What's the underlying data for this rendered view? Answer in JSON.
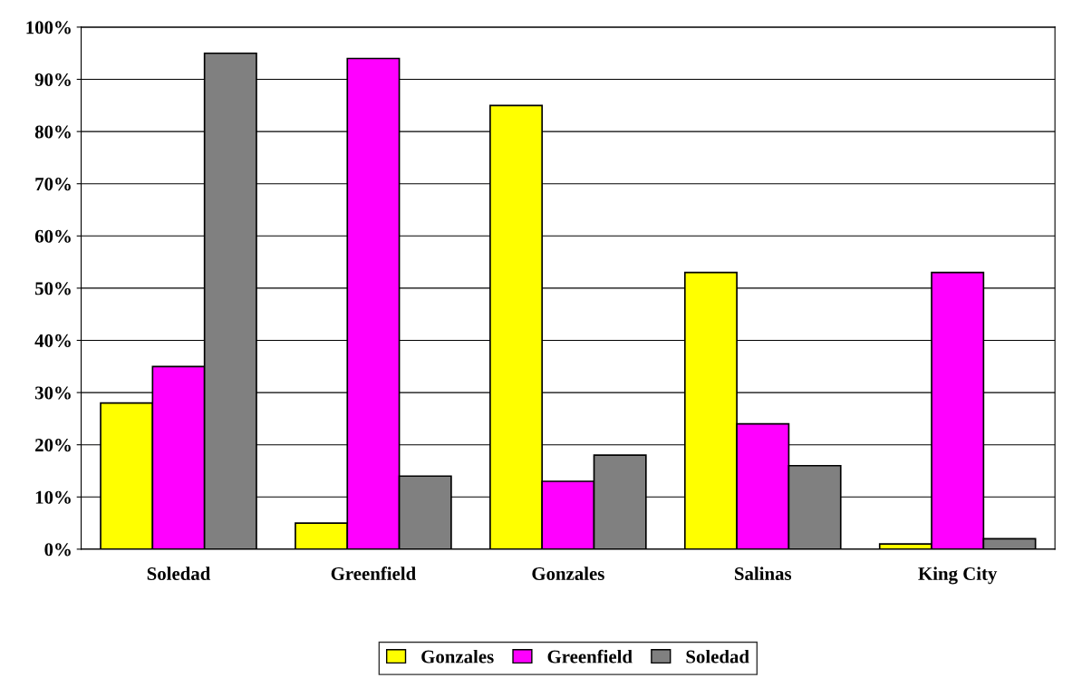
{
  "chart_data": {
    "type": "bar",
    "categories": [
      "Soledad",
      "Greenfield",
      "Gonzales",
      "Salinas",
      "King City"
    ],
    "series": [
      {
        "name": "Gonzales",
        "color": "#ffff00",
        "values": [
          28,
          5,
          85,
          53,
          1
        ]
      },
      {
        "name": "Greenfield",
        "color": "#ff00ff",
        "values": [
          35,
          94,
          13,
          24,
          53
        ]
      },
      {
        "name": "Soledad",
        "color": "#808080",
        "values": [
          95,
          14,
          18,
          16,
          2
        ]
      }
    ],
    "ylim": [
      0,
      100
    ],
    "yticks": [
      {
        "value": 0,
        "label": "0%"
      },
      {
        "value": 10,
        "label": "10%"
      },
      {
        "value": 20,
        "label": "20%"
      },
      {
        "value": 30,
        "label": "30%"
      },
      {
        "value": 40,
        "label": "40%"
      },
      {
        "value": 50,
        "label": "50%"
      },
      {
        "value": 60,
        "label": "60%"
      },
      {
        "value": 70,
        "label": "70%"
      },
      {
        "value": 80,
        "label": "80%"
      },
      {
        "value": 90,
        "label": "90%"
      },
      {
        "value": 100,
        "label": "100%"
      }
    ],
    "grid": "y",
    "legend": "bottom"
  }
}
